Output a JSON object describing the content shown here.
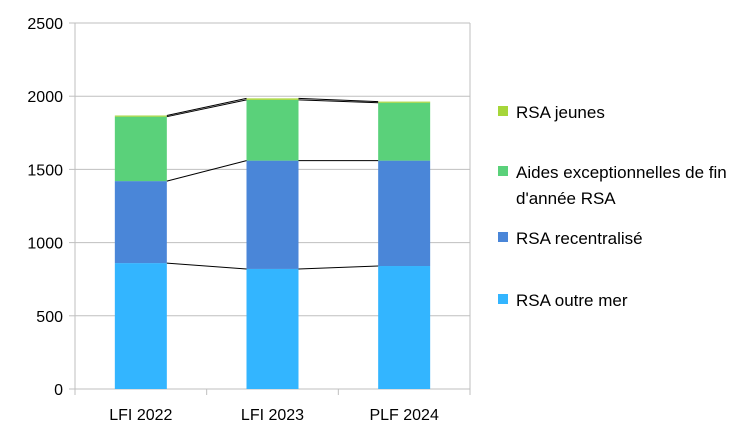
{
  "chart_data": {
    "type": "bar",
    "stacked": true,
    "categories": [
      "LFI 2022",
      "LFI 2023",
      "PLF 2024"
    ],
    "series": [
      {
        "name": "RSA outre mer",
        "color": "#33b5ff",
        "values": [
          860,
          820,
          840
        ]
      },
      {
        "name": "RSA recentralisé",
        "color": "#4a86d8",
        "values": [
          560,
          740,
          720
        ]
      },
      {
        "name": "Aides exceptionnelles de fin d'année RSA",
        "color": "#5ad17a",
        "values": [
          440,
          415,
          395
        ]
      },
      {
        "name": "RSA jeunes",
        "color": "#a6d63a",
        "values": [
          8,
          10,
          8
        ]
      }
    ],
    "ylim": [
      0,
      2500
    ],
    "yticks": [
      "0",
      "500",
      "1000",
      "1500",
      "2000",
      "2500"
    ],
    "grid": true,
    "legend_position": "right",
    "connector_lines": true
  }
}
